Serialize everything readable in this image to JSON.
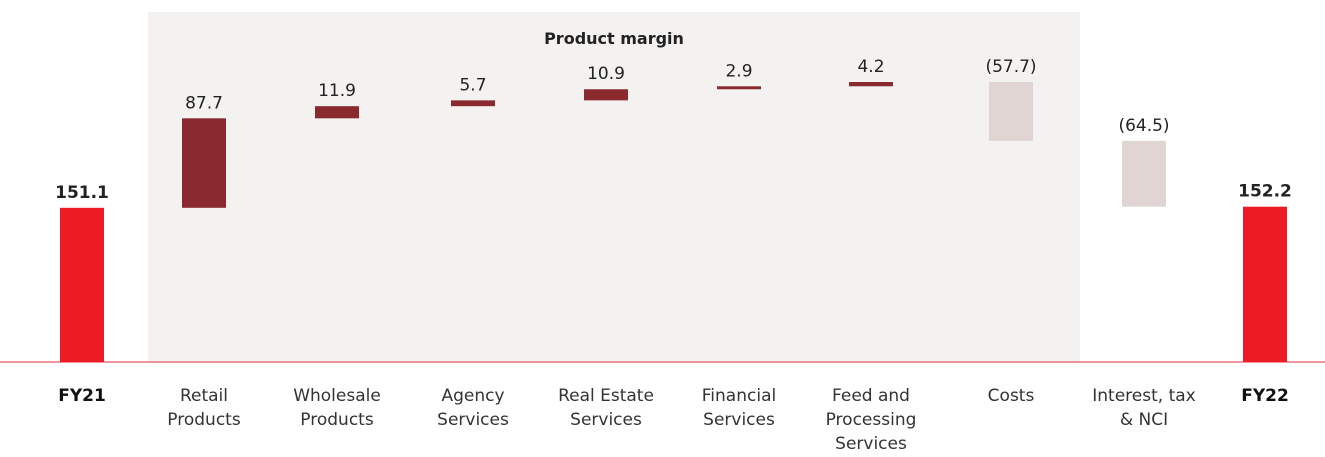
{
  "chart_data": {
    "type": "waterfall",
    "annotation": "Product margin",
    "categories": [
      "FY21",
      "Retail Products",
      "Wholesale Products",
      "Agency Services",
      "Real Estate Services",
      "Financial Services",
      "Feed and Processing Services",
      "Costs",
      "Interest, tax & NCI",
      "FY22"
    ],
    "values": [
      151.1,
      87.7,
      11.9,
      5.7,
      10.9,
      2.9,
      4.2,
      -57.7,
      -64.5,
      152.2
    ],
    "value_labels": [
      "151.1",
      "87.7",
      "11.9",
      "5.7",
      "10.9",
      "2.9",
      "4.2",
      "(57.7)",
      "(64.5)",
      "152.2"
    ],
    "measures": [
      "total",
      "relative",
      "relative",
      "relative",
      "relative",
      "relative",
      "relative",
      "relative",
      "relative",
      "total"
    ],
    "colors": {
      "total": "#ed1c24",
      "increase": "#8b2a2e",
      "decrease": "#e0d5d3"
    }
  }
}
